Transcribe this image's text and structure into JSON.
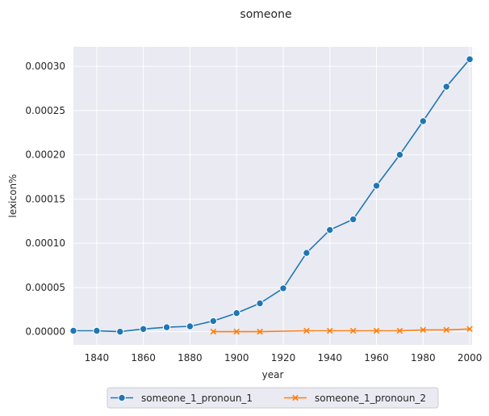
{
  "chart_data": {
    "type": "line",
    "title": "someone",
    "xlabel": "year",
    "ylabel": "lexicon%",
    "xlim": [
      1830,
      2001
    ],
    "ylim": [
      -1.5e-05,
      0.000322
    ],
    "xticks": [
      1840,
      1860,
      1880,
      1900,
      1920,
      1940,
      1960,
      1980,
      2000
    ],
    "xtick_labels": [
      "1840",
      "1860",
      "1880",
      "1900",
      "1920",
      "1940",
      "1960",
      "1980",
      "2000"
    ],
    "yticks": [
      0,
      5e-05,
      0.0001,
      0.00015,
      0.0002,
      0.00025,
      0.0003
    ],
    "ytick_labels": [
      "0.00000",
      "0.00005",
      "0.00010",
      "0.00015",
      "0.00020",
      "0.00025",
      "0.00030"
    ],
    "grid": true,
    "legend_position": "bottom-center",
    "series": [
      {
        "name": "someone_1_pronoun_1",
        "color": "#1f77b4",
        "marker": "circle",
        "x": [
          1830,
          1840,
          1850,
          1860,
          1870,
          1880,
          1890,
          1900,
          1910,
          1920,
          1930,
          1940,
          1950,
          1960,
          1970,
          1980,
          1990,
          2000
        ],
        "y": [
          1e-06,
          1e-06,
          0.0,
          3e-06,
          5e-06,
          6e-06,
          1.2e-05,
          2.1e-05,
          3.2e-05,
          4.9e-05,
          8.9e-05,
          0.000115,
          0.000127,
          0.000165,
          0.0002,
          0.000238,
          0.000277,
          0.000308
        ]
      },
      {
        "name": "someone_1_pronoun_2",
        "color": "#ff7f0e",
        "marker": "x",
        "x": [
          1890,
          1900,
          1910,
          1930,
          1940,
          1950,
          1960,
          1970,
          1980,
          1990,
          2000
        ],
        "y": [
          0.0,
          0.0,
          0.0,
          1e-06,
          1e-06,
          1e-06,
          1e-06,
          1e-06,
          2e-06,
          2e-06,
          3e-06
        ]
      }
    ]
  }
}
